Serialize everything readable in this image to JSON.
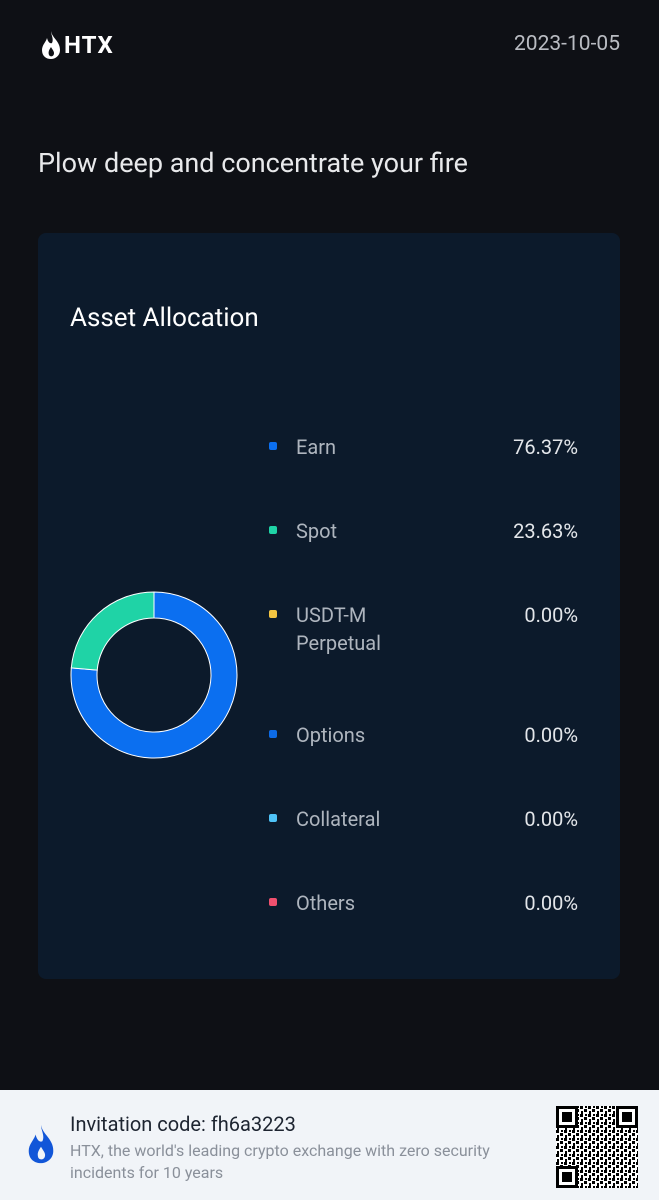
{
  "header": {
    "logo": "HTX",
    "date": "2023-10-05"
  },
  "tagline": "Plow deep and concentrate your fire",
  "chart_data": {
    "type": "pie",
    "title": "Asset Allocation",
    "categories": [
      "Earn",
      "Spot",
      "USDT-M Perpetual",
      "Options",
      "Collateral",
      "Others"
    ],
    "values": [
      76.37,
      23.63,
      0,
      0,
      0,
      0
    ],
    "value_labels": [
      "76.37%",
      "23.63%",
      "0.00%",
      "0.00%",
      "0.00%",
      "0.00%"
    ],
    "colors": [
      "#0b6ff0",
      "#1fd3a6",
      "#f4c542",
      "#0d6be6",
      "#4fc3f7",
      "#f0506e"
    ]
  },
  "footer": {
    "invitation": "Invitation code: fh6a3223",
    "slogan": "HTX, the world's leading crypto exchange with zero security incidents for 10 years"
  }
}
